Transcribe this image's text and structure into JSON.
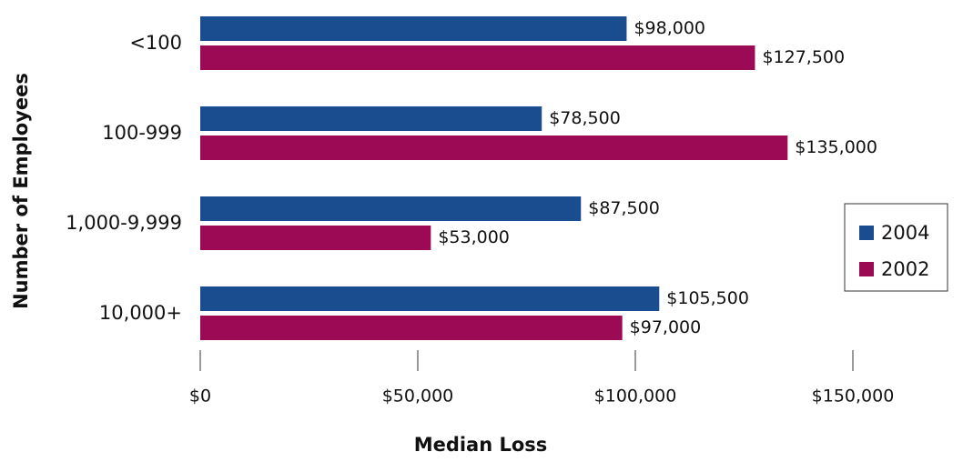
{
  "chart_data": {
    "type": "barh",
    "xlabel": "Median Loss",
    "ylabel": "Number of Employees",
    "categories": [
      "<100",
      "100-999",
      "1,000-9,999",
      "10,000+"
    ],
    "series": [
      {
        "name": "2004",
        "color": "#1a4d8f",
        "values": [
          98000,
          78500,
          87500,
          105500
        ],
        "value_labels": [
          "$98,000",
          "$78,500",
          "$87,500",
          "$105,500"
        ]
      },
      {
        "name": "2002",
        "color": "#9c0a56",
        "values": [
          127500,
          135000,
          53000,
          97000
        ],
        "value_labels": [
          "$127,500",
          "$135,000",
          "$53,000",
          "$97,000"
        ]
      }
    ],
    "xlim": [
      0,
      150000
    ],
    "xticks": [
      {
        "value": 0,
        "label": "$0"
      },
      {
        "value": 50000,
        "label": "$50,000"
      },
      {
        "value": 100000,
        "label": "$100,000"
      },
      {
        "value": 150000,
        "label": "$150,000"
      }
    ],
    "legend": "right"
  }
}
